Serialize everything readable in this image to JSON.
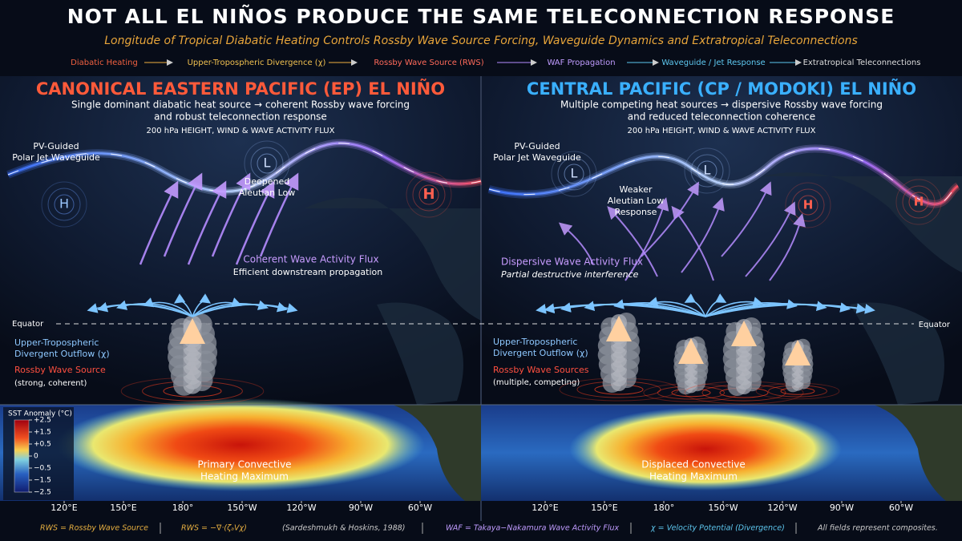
{
  "header": {
    "title": "NOT ALL EL NIÑOS PRODUCE THE SAME TELECONNECTION RESPONSE",
    "subtitle": "Longitude of Tropical Diabatic Heating Controls Rossby Wave Source Forcing, Waveguide Dynamics and Extratropical Teleconnections"
  },
  "flow": [
    "Diabatic Heating",
    "Upper-Tropospheric Divergence (χ)",
    "Rossby Wave Source (RWS)",
    "WAF Propagation",
    "Waveguide / Jet Response",
    "Extratropical Teleconnections"
  ],
  "panels": [
    {
      "title": "CANONICAL EASTERN PACIFIC (EP) EL NIÑO",
      "description": [
        "Single dominant diabatic heat source → coherent Rossby wave forcing",
        "and robust teleconnection response"
      ],
      "map_label": "200 hPa HEIGHT, WIND & WAVE ACTIVITY FLUX",
      "waveguide": [
        "PV-Guided",
        "Polar Jet Waveguide"
      ],
      "centers": [
        "H",
        "L",
        "H"
      ],
      "low_label": [
        "Deepened",
        "Aleutian Low"
      ],
      "flux_title": "Coherent Wave Activity Flux",
      "flux_note": "Efficient downstream propagation",
      "equator": "Equator",
      "outflow": [
        "Upper-Tropospheric",
        "Divergent Outflow (χ)"
      ],
      "source_title": "Rossby Wave Source",
      "source_note": "(strong, coherent)",
      "heating": [
        "Primary Convective",
        "Heating Maximum"
      ]
    },
    {
      "title": "CENTRAL PACIFIC (CP / MODOKI) EL NIÑO",
      "description": [
        "Multiple competing heat sources → dispersive Rossby wave forcing",
        "and reduced teleconnection coherence"
      ],
      "map_label": "200 hPa HEIGHT, WIND & WAVE ACTIVITY FLUX",
      "waveguide": [
        "PV-Guided",
        "Polar Jet Waveguide"
      ],
      "centers": [
        "L",
        "L",
        "H",
        "H"
      ],
      "low_label": [
        "Weaker",
        "Aleutian Low",
        "Response"
      ],
      "flux_title": "Dispersive Wave Activity Flux",
      "flux_note": "Partial destructive interference",
      "equator": "Equator",
      "outflow": [
        "Upper-Tropospheric",
        "Divergent Outflow (χ)"
      ],
      "source_title": "Rossby Wave Sources",
      "source_note": "(multiple, competing)",
      "heating": [
        "Displaced Convective",
        "Heating Maximum"
      ]
    }
  ],
  "colorbar": {
    "title": "SST Anomaly (°C)",
    "ticks": [
      "+2.5",
      "+1.5",
      "+0.5",
      "0",
      "−0.5",
      "−1.5",
      "−2.5"
    ]
  },
  "longitudes": [
    "120°E",
    "150°E",
    "180°",
    "150°W",
    "120°W",
    "90°W",
    "60°W"
  ],
  "footer": [
    "RWS = Rossby Wave Source",
    "RWS = −∇·(ζₐVχ)",
    "(Sardeshmukh & Hoskins, 1988)",
    "WAF = Takaya−Nakamura Wave Activity Flux",
    "χ = Velocity Potential (Divergence)",
    "All fields represent composites."
  ]
}
